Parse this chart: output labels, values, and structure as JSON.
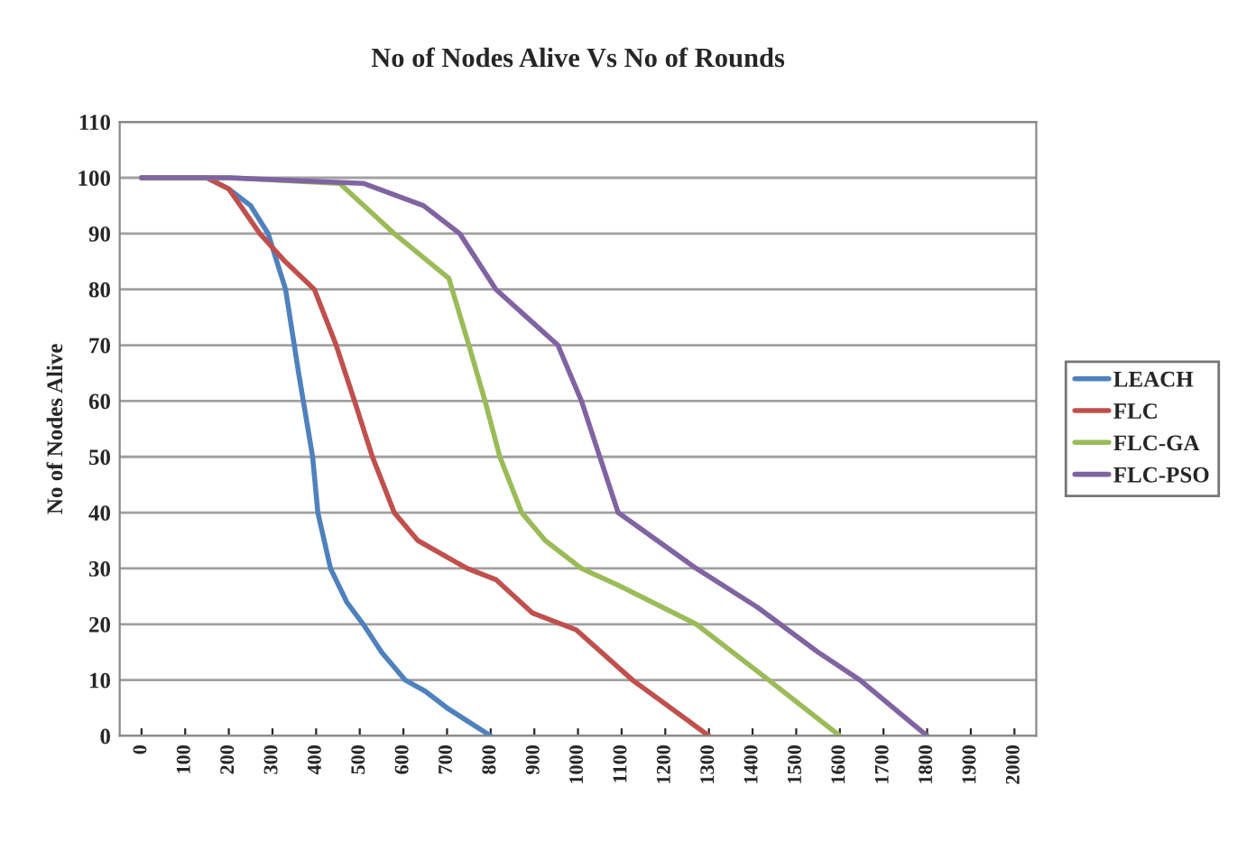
{
  "chart_data": {
    "type": "line",
    "title": "No of Nodes Alive Vs No of Rounds",
    "ylabel": "No of Nodes Alive",
    "series": [
      {
        "name": "LEACH",
        "color": "#4f81bd",
        "x": [
          0,
          150,
          200,
          250,
          290,
          330,
          360,
          392,
          404,
          433,
          470,
          508,
          550,
          604,
          650,
          700,
          800
        ],
        "values": [
          100,
          100,
          98,
          95,
          90,
          80,
          65,
          50,
          40,
          30,
          24,
          20,
          15,
          10,
          8,
          5,
          0
        ]
      },
      {
        "name": "FLC",
        "color": "#c0504d",
        "x": [
          0,
          150,
          200,
          271,
          329,
          396,
          446,
          488,
          529,
          579,
          633,
          746,
          812,
          896,
          996,
          1125,
          1300
        ],
        "values": [
          100,
          100,
          98,
          90,
          85,
          80,
          70,
          60,
          50,
          40,
          35,
          30,
          28,
          22,
          19,
          10,
          0
        ]
      },
      {
        "name": "FLC-GA",
        "color": "#9bbb59",
        "x": [
          0,
          200,
          454,
          579,
          704,
          750,
          787,
          821,
          871,
          925,
          1008,
          1092,
          1271,
          1437,
          1600
        ],
        "values": [
          100,
          100,
          99,
          90,
          82,
          70,
          60,
          50,
          40,
          35,
          30,
          27,
          20,
          10,
          0
        ]
      },
      {
        "name": "FLC-PSO",
        "color": "#8064a2",
        "x": [
          0,
          200,
          508,
          646,
          729,
          812,
          883,
          954,
          1008,
          1050,
          1092,
          1271,
          1412,
          1550,
          1646,
          1800
        ],
        "values": [
          100,
          100,
          99,
          95,
          90,
          80,
          75,
          70,
          60,
          50,
          40,
          30,
          23,
          15,
          10,
          0
        ]
      }
    ],
    "xlim": [
      -50,
      2050
    ],
    "xticks": [
      0,
      100,
      200,
      300,
      400,
      500,
      600,
      700,
      800,
      900,
      1000,
      1100,
      1200,
      1300,
      1400,
      1500,
      1600,
      1700,
      1800,
      1900,
      2000
    ],
    "ylim": [
      0,
      110
    ],
    "yticks": [
      0,
      10,
      20,
      30,
      40,
      50,
      60,
      70,
      80,
      90,
      100,
      110
    ],
    "grid": "y",
    "legend": "right",
    "line_style": "solid",
    "marker": "none"
  }
}
